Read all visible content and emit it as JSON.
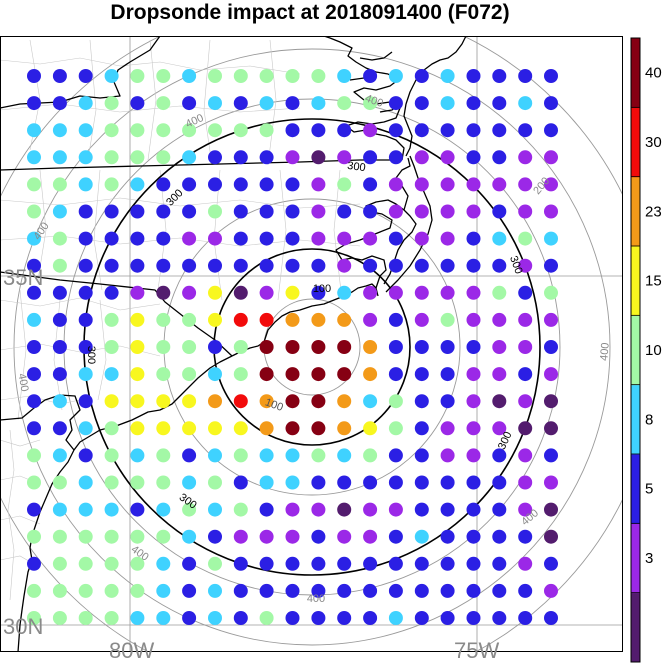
{
  "title": "Dropsonde impact at 2018091400 (F072)",
  "map": {
    "lat_labels": [
      "35N",
      "30N"
    ],
    "lon_labels": [
      "80W",
      "75W"
    ],
    "extent": {
      "lon_min": -83.8,
      "lon_max": -70.8,
      "lat_min": 29.8,
      "lat_max": 39.6
    },
    "center": {
      "lon": -77.8,
      "lat": 34.2
    },
    "ring_labels_black": [
      "100",
      "300"
    ],
    "ring_labels_gray": [
      "200",
      "400"
    ]
  },
  "colorbar": {
    "labels": [
      "40",
      "30",
      "23",
      "15",
      "10",
      "8",
      "5",
      "3"
    ],
    "colors": [
      "#531c6e",
      "#9b28e7",
      "#2b1fe4",
      "#3fd2ff",
      "#a3f8a6",
      "#f8f71f",
      "#f39a19",
      "#f20b0b",
      "#860013"
    ]
  },
  "grid": {
    "columns": 21,
    "rows": 21,
    "key": {
      "a": "#531c6e",
      "p": "#9b28e7",
      "b": "#2b1fe4",
      "c": "#3fd2ff",
      "g": "#a3f8a6",
      "y": "#f8f71f",
      "o": "#f39a19",
      "r": "#f20b0b",
      "d": "#860013"
    },
    "cells": [
      "bbbcggcgggggcbcbcbbbb",
      "bbcgbgbcbcbcggbbcbbcb",
      "cccgggggggbbbpbbbbbbb",
      "cccgggcbbbpapbbppbbpp",
      "ggcgcbbbbbbpgbppppppp",
      "gcbbbbbgbbbpbbppppbpp",
      "cgbbbbppbbbpppbppbcgc",
      "bgbbbbbbbbbbpbbbbbbpb",
      "bbbbpapyapybcpppppgbg",
      "cbbgyggyrrooopbpgpppp",
      "bbbgyggbgddddobbbbppb",
      "bbccyggcgddddobbbppbp",
      "bcbyyyyoroddocgbbpapa",
      "bbcgyyyyyoddoygbpppaa",
      "gcbgcgbcgccgcgbbppbpb",
      "ggcgggcgbccbbbbbbbbpp",
      "bcccbcgcgbppappbbbbpa",
      "ggggggcbpppbppbcbbbba",
      "bggggcbgbbbbbbbbbbbpb",
      "gggggcbcbbbbbbbbbbbbp",
      "ggggccbcbgbbbbcbbbbbb"
    ]
  }
}
